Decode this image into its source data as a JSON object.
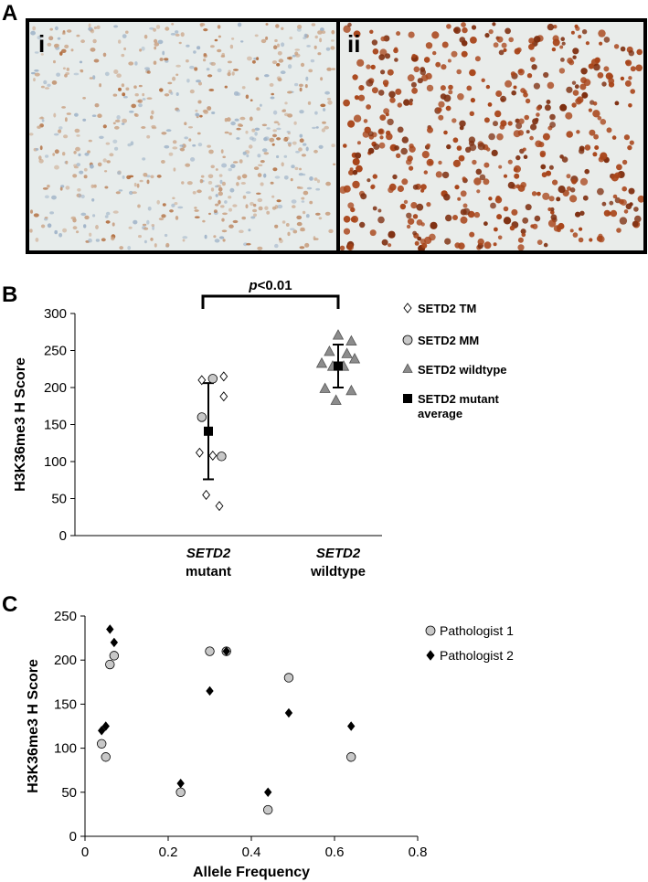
{
  "panel_labels": {
    "a": "A",
    "b": "B",
    "c": "C"
  },
  "panel_a": {
    "left_label": "i",
    "right_label": "ii",
    "left_colors": {
      "bg": "#e7eceb",
      "nuclei_light": "#c9a182",
      "nuclei_blue": "#9fb3c8",
      "nuclei_dark": "#b06a3a"
    },
    "right_colors": {
      "bg": "#e9ecea",
      "nuclei": "#a8451a",
      "nuclei_dark": "#7e2f10"
    }
  },
  "chart_data": [
    {
      "type": "scatter",
      "panel": "B",
      "ylabel": "H3K36me3 H Score",
      "ylim": [
        0,
        300
      ],
      "yticks": [
        0,
        50,
        100,
        150,
        200,
        250,
        300
      ],
      "categories": [
        {
          "italic": "SETD2",
          "plain": "mutant"
        },
        {
          "italic": "SETD2",
          "plain": "wildtype"
        }
      ],
      "annotation": {
        "italic": "p",
        "rest": "<0.01"
      },
      "legend_placement": "right",
      "grid": false,
      "series": [
        {
          "name": "SETD2 TM",
          "marker": "diamond-open",
          "color": "#ffffff",
          "points": [
            [
              1,
              215
            ],
            [
              1,
              210
            ],
            [
              1,
              188
            ],
            [
              1,
              112
            ],
            [
              1,
              108
            ],
            [
              1,
              55
            ],
            [
              1,
              40
            ]
          ],
          "jitter": [
            0.14,
            -0.06,
            0.14,
            -0.08,
            0.04,
            -0.02,
            0.1
          ]
        },
        {
          "name": "SETD2 MM",
          "marker": "circle",
          "color": "#c8c8c8",
          "points": [
            [
              1,
              212
            ],
            [
              1,
              160
            ],
            [
              1,
              107
            ]
          ],
          "jitter": [
            0.04,
            -0.06,
            0.12
          ]
        },
        {
          "name": "SETD2 wildtype",
          "marker": "triangle",
          "color": "#8c8c8c",
          "points": [
            [
              2,
              270
            ],
            [
              2,
              262
            ],
            [
              2,
              248
            ],
            [
              2,
              245
            ],
            [
              2,
              238
            ],
            [
              2,
              232
            ],
            [
              2,
              228
            ],
            [
              2,
              228
            ],
            [
              2,
              198
            ],
            [
              2,
              195
            ],
            [
              2,
              182
            ]
          ],
          "jitter": [
            0.0,
            0.12,
            -0.08,
            0.08,
            0.15,
            -0.15,
            -0.05,
            0.05,
            -0.12,
            0.12,
            -0.02
          ]
        },
        {
          "name": "SETD2 mutant average",
          "marker": "square",
          "color": "#000000",
          "points": [
            [
              1,
              141
            ],
            [
              2,
              229
            ]
          ],
          "error": [
            65,
            29
          ]
        }
      ],
      "legend": [
        {
          "label": "SETD2 TM",
          "marker": "diamond-open"
        },
        {
          "label": "SETD2 MM",
          "marker": "circle"
        },
        {
          "label": "SETD2 wildtype",
          "marker": "triangle"
        },
        {
          "label": "SETD2 mutant average",
          "marker": "square"
        }
      ]
    },
    {
      "type": "scatter",
      "panel": "C",
      "xlabel": "Allele Frequency",
      "ylabel": "H3K36me3 H Score",
      "xlim": [
        0,
        0.8
      ],
      "ylim": [
        0,
        250
      ],
      "xticks": [
        0,
        0.2,
        0.4,
        0.6,
        0.8
      ],
      "yticks": [
        0,
        50,
        100,
        150,
        200,
        250
      ],
      "legend_placement": "top-right",
      "grid": false,
      "series": [
        {
          "name": "Pathologist 1",
          "marker": "circle",
          "color": "#c8c8c8",
          "points": [
            [
              0.04,
              105
            ],
            [
              0.05,
              90
            ],
            [
              0.06,
              195
            ],
            [
              0.07,
              205
            ],
            [
              0.23,
              50
            ],
            [
              0.3,
              210
            ],
            [
              0.34,
              210
            ],
            [
              0.44,
              30
            ],
            [
              0.49,
              180
            ],
            [
              0.64,
              90
            ]
          ]
        },
        {
          "name": "Pathologist 2",
          "marker": "diamond",
          "color": "#000000",
          "points": [
            [
              0.04,
              120
            ],
            [
              0.05,
              125
            ],
            [
              0.06,
              235
            ],
            [
              0.07,
              220
            ],
            [
              0.23,
              60
            ],
            [
              0.3,
              165
            ],
            [
              0.34,
              210
            ],
            [
              0.44,
              50
            ],
            [
              0.49,
              140
            ],
            [
              0.64,
              125
            ]
          ]
        }
      ]
    }
  ]
}
